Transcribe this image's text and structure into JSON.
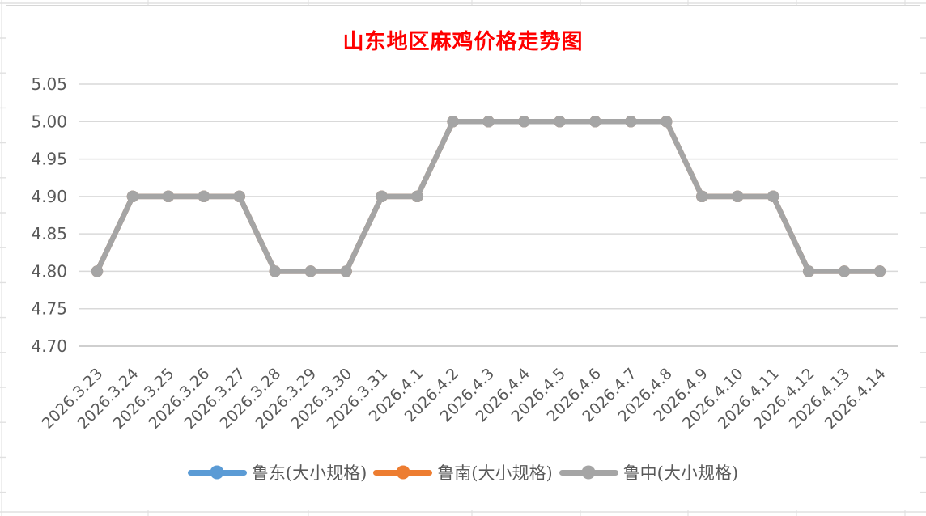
{
  "chart_data": {
    "type": "line",
    "title": "山东地区麻鸡价格走势图",
    "title_color": "#FF0000",
    "xlabel": "",
    "ylabel": "",
    "ylim": [
      4.7,
      5.05
    ],
    "ytick_step": 0.05,
    "ytick_labels": [
      "5.05",
      "5.00",
      "4.95",
      "4.90",
      "4.85",
      "4.80",
      "4.75",
      "4.70"
    ],
    "grid": true,
    "legend_position": "bottom",
    "categories": [
      "2026.3.23",
      "2026.3.24",
      "2026.3.25",
      "2026.3.26",
      "2026.3.27",
      "2026.3.28",
      "2026.3.29",
      "2026.3.30",
      "2026.3.31",
      "2026.4.1",
      "2026.4.2",
      "2026.4.3",
      "2026.4.4",
      "2026.4.5",
      "2026.4.6",
      "2026.4.7",
      "2026.4.8",
      "2026.4.9",
      "2026.4.10",
      "2026.4.11",
      "2026.4.12",
      "2026.4.13",
      "2026.4.14"
    ],
    "series": [
      {
        "name": "鲁东(大小规格)",
        "color": "#5B9BD5",
        "values": [
          4.8,
          4.9,
          4.9,
          4.9,
          4.9,
          4.8,
          4.8,
          4.8,
          4.9,
          4.9,
          5.0,
          5.0,
          5.0,
          5.0,
          5.0,
          5.0,
          5.0,
          4.9,
          4.9,
          4.9,
          4.8,
          4.8,
          4.8
        ]
      },
      {
        "name": "鲁南(大小规格)",
        "color": "#ED7D31",
        "values": [
          4.8,
          4.9,
          4.9,
          4.9,
          4.9,
          4.8,
          4.8,
          4.8,
          4.9,
          4.9,
          5.0,
          5.0,
          5.0,
          5.0,
          5.0,
          5.0,
          5.0,
          4.9,
          4.9,
          4.9,
          4.8,
          4.8,
          4.8
        ]
      },
      {
        "name": "鲁中(大小规格)",
        "color": "#A5A5A5",
        "values": [
          4.8,
          4.9,
          4.9,
          4.9,
          4.9,
          4.8,
          4.8,
          4.8,
          4.9,
          4.9,
          5.0,
          5.0,
          5.0,
          5.0,
          5.0,
          5.0,
          5.0,
          4.9,
          4.9,
          4.9,
          4.8,
          4.8,
          4.8
        ]
      }
    ],
    "colors": {
      "gridline": "#D9D9D9",
      "axis_line": "#BFBFBF",
      "tick_label": "#595959"
    }
  }
}
